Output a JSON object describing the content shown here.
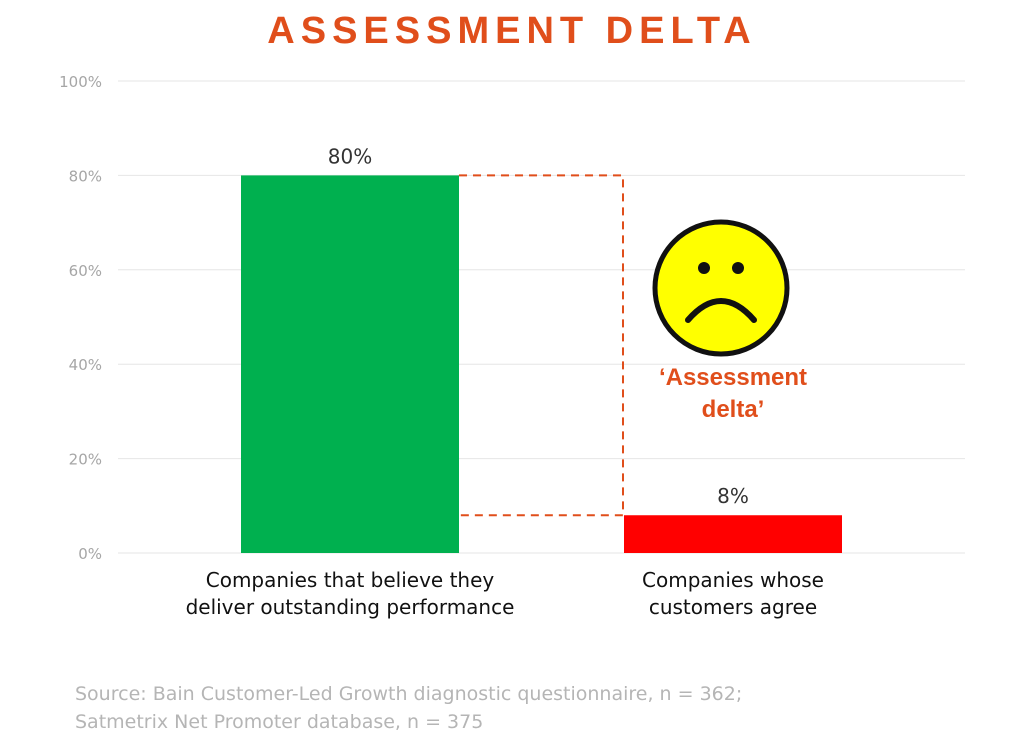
{
  "colors": {
    "accent": "#e04e1b",
    "bar_primary": "#00b04f",
    "bar_secondary": "#ff0000",
    "gridline": "#e6e6e6",
    "tick_text": "#a6a6a6",
    "face": "#ffff00"
  },
  "chart_data": {
    "type": "bar",
    "title": "ASSESSMENT DELTA",
    "categories": [
      "Companies that believe they deliver outstanding performance",
      "Companies whose customers agree"
    ],
    "category_lines": [
      [
        "Companies that believe they",
        "deliver outstanding performance"
      ],
      [
        "Companies whose",
        "customers agree"
      ]
    ],
    "values": [
      80,
      8
    ],
    "data_labels": [
      "80%",
      "8%"
    ],
    "bar_colors": [
      "#00b04f",
      "#ff0000"
    ],
    "ylim": [
      0,
      100
    ],
    "yticks": [
      0,
      20,
      40,
      60,
      80,
      100
    ],
    "ytick_labels": [
      "0%",
      "20%",
      "40%",
      "60%",
      "80%",
      "100%"
    ],
    "grid": true,
    "annotation": {
      "lines": [
        "‘Assessment",
        "delta’"
      ],
      "icon": "sad-face-icon"
    },
    "source_lines": [
      "Source: Bain Customer-Led Growth diagnostic questionnaire, n = 362;",
      "Satmetrix Net Promoter database, n = 375"
    ]
  }
}
